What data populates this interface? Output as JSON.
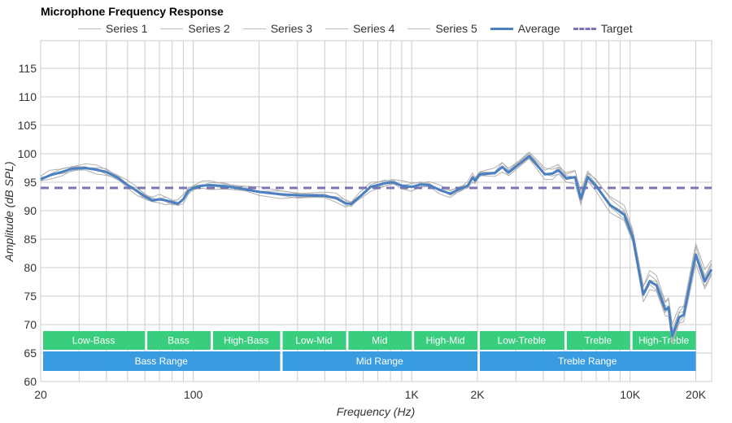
{
  "chart_data": {
    "type": "line",
    "title": "Microphone Frequency Response",
    "xlabel": "Frequency (Hz)",
    "ylabel": "Amplitude (dB SPL)",
    "xscale": "log",
    "xlim": [
      20,
      24000
    ],
    "ylim": [
      60,
      120
    ],
    "grid": true,
    "legend_position": "top",
    "x_ticks": [
      {
        "v": 20,
        "label": "20"
      },
      {
        "v": 100,
        "label": "100"
      },
      {
        "v": 1000,
        "label": "1K"
      },
      {
        "v": 2000,
        "label": "2K"
      },
      {
        "v": 10000,
        "label": "10K"
      },
      {
        "v": 20000,
        "label": "20K"
      }
    ],
    "y_ticks": [
      60,
      65,
      70,
      75,
      80,
      85,
      90,
      95,
      100,
      105,
      110,
      115
    ],
    "legend": [
      "Series 1",
      "Series 2",
      "Series 3",
      "Series 4",
      "Series 5",
      "Average",
      "Target"
    ],
    "colors": {
      "series": "#b0b0b0",
      "average": "#4a7fc1",
      "target": "#7b74b4",
      "band_green": "#33cc7a",
      "band_blue": "#3399e0",
      "grid": "#cccccc"
    },
    "target_db": 94,
    "average": {
      "freq": [
        20,
        22,
        25,
        28,
        32,
        36,
        40,
        45,
        50,
        55,
        60,
        65,
        70,
        75,
        80,
        85,
        90,
        95,
        100,
        110,
        120,
        140,
        170,
        200,
        250,
        300,
        400,
        450,
        500,
        530,
        580,
        650,
        750,
        820,
        900,
        1000,
        1100,
        1200,
        1350,
        1500,
        1700,
        1800,
        1900,
        1950,
        2050,
        2400,
        2600,
        2780,
        3450,
        4070,
        4400,
        4700,
        5100,
        5600,
        5950,
        6400,
        7000,
        8100,
        9400,
        10300,
        11500,
        12300,
        13200,
        14500,
        15000,
        15600,
        16800,
        17600,
        20000,
        22000,
        23600
      ],
      "db": [
        95.5,
        96.2,
        96.8,
        97.4,
        97.5,
        97.2,
        96.8,
        95.8,
        94.5,
        93.5,
        92.5,
        91.8,
        92.0,
        91.8,
        91.5,
        91.2,
        92.0,
        93.5,
        94.0,
        94.4,
        94.5,
        94.3,
        93.8,
        93.3,
        92.9,
        92.7,
        92.6,
        92.2,
        91.3,
        91.2,
        92.5,
        94.2,
        94.8,
        95.0,
        94.4,
        94.2,
        94.6,
        94.5,
        93.6,
        93.0,
        94.0,
        94.3,
        95.8,
        95.3,
        96.4,
        96.6,
        97.7,
        96.7,
        99.6,
        96.4,
        96.5,
        97.1,
        95.7,
        95.9,
        92.1,
        95.9,
        94.3,
        91.0,
        89.3,
        85.3,
        75.3,
        77.6,
        76.9,
        72.6,
        73.0,
        68.0,
        71.3,
        71.7,
        82.3,
        77.6,
        79.7
      ]
    },
    "series": [
      {
        "name": "Series 1",
        "deviation_low_db": 0.6,
        "deviation_high_db": 1.2
      },
      {
        "name": "Series 2",
        "deviation_low_db": -0.5,
        "deviation_high_db": -1.3
      },
      {
        "name": "Series 3",
        "deviation_low_db": 0.3,
        "deviation_high_db": 1.8
      },
      {
        "name": "Series 4",
        "deviation_low_db": -0.2,
        "deviation_high_db": -0.6
      },
      {
        "name": "Series 5",
        "deviation_low_db": 0.1,
        "deviation_high_db": 0.5
      }
    ],
    "bands": [
      {
        "label": "Low-Bass",
        "from": 20,
        "to": 60,
        "row": 1
      },
      {
        "label": "Bass",
        "from": 60,
        "to": 120,
        "row": 1
      },
      {
        "label": "High-Bass",
        "from": 120,
        "to": 250,
        "row": 1
      },
      {
        "label": "Low-Mid",
        "from": 250,
        "to": 500,
        "row": 1
      },
      {
        "label": "Mid",
        "from": 500,
        "to": 1000,
        "row": 1
      },
      {
        "label": "High-Mid",
        "from": 1000,
        "to": 2000,
        "row": 1
      },
      {
        "label": "Low-Treble",
        "from": 2000,
        "to": 5000,
        "row": 1
      },
      {
        "label": "Treble",
        "from": 5000,
        "to": 10000,
        "row": 1
      },
      {
        "label": "High-Treble",
        "from": 10000,
        "to": 20000,
        "row": 1
      },
      {
        "label": "Bass Range",
        "from": 20,
        "to": 250,
        "row": 2
      },
      {
        "label": "Mid Range",
        "from": 250,
        "to": 2000,
        "row": 2
      },
      {
        "label": "Treble Range",
        "from": 2000,
        "to": 20000,
        "row": 2
      }
    ]
  }
}
